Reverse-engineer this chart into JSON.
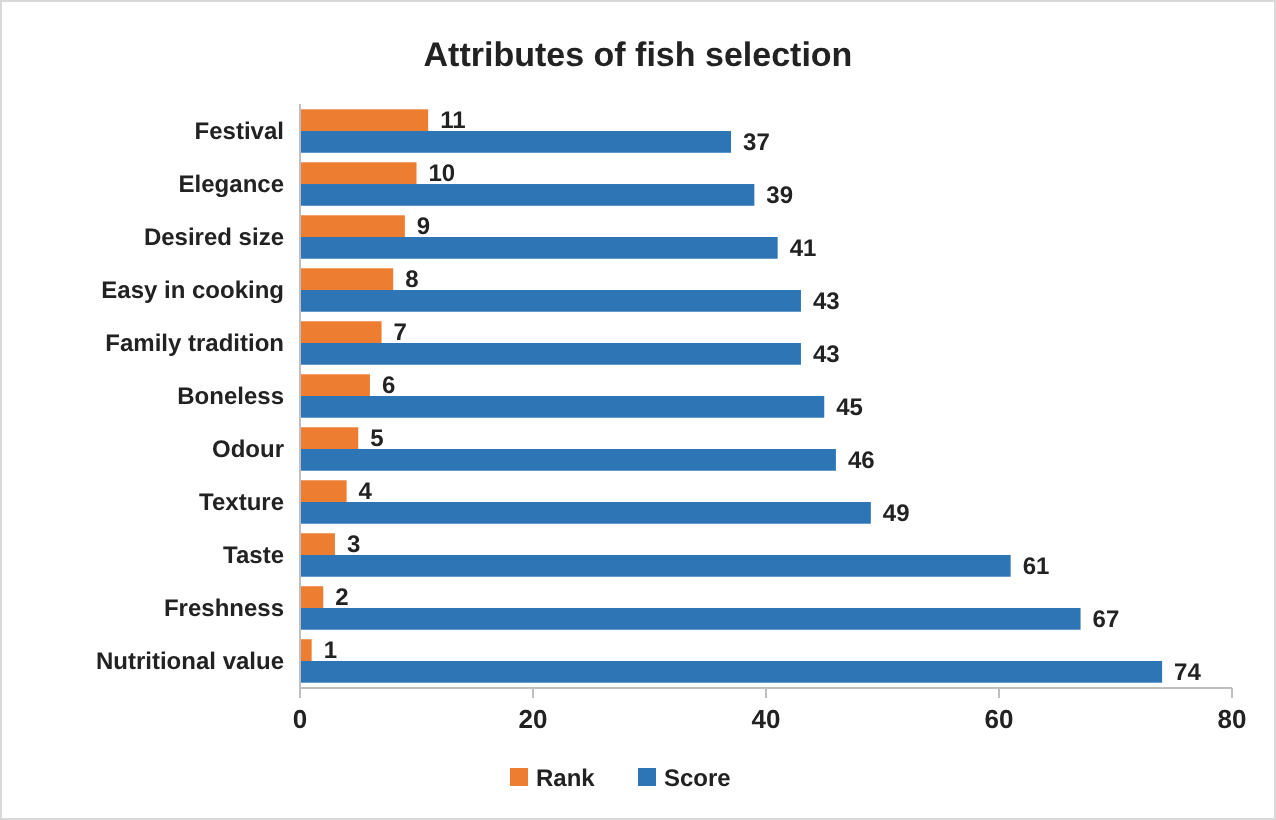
{
  "chart_data": {
    "type": "bar",
    "orientation": "horizontal",
    "title": "Attributes of fish selection",
    "categories": [
      "Festival",
      "Elegance",
      "Desired size",
      "Easy in cooking",
      "Family tradition",
      "Boneless",
      "Odour",
      "Texture",
      "Taste",
      "Freshness",
      "Nutritional value"
    ],
    "series": [
      {
        "name": "Rank",
        "color": "#ed7d31",
        "values": [
          11,
          10,
          9,
          8,
          7,
          6,
          5,
          4,
          3,
          2,
          1
        ]
      },
      {
        "name": "Score",
        "color": "#2e75b6",
        "values": [
          37,
          39,
          41,
          43,
          43,
          45,
          46,
          49,
          61,
          67,
          74
        ]
      }
    ],
    "xlim": [
      0,
      80
    ],
    "xticks": [
      0,
      20,
      40,
      60,
      80
    ],
    "data_labels": true,
    "legend": "bottom",
    "grid": false
  }
}
